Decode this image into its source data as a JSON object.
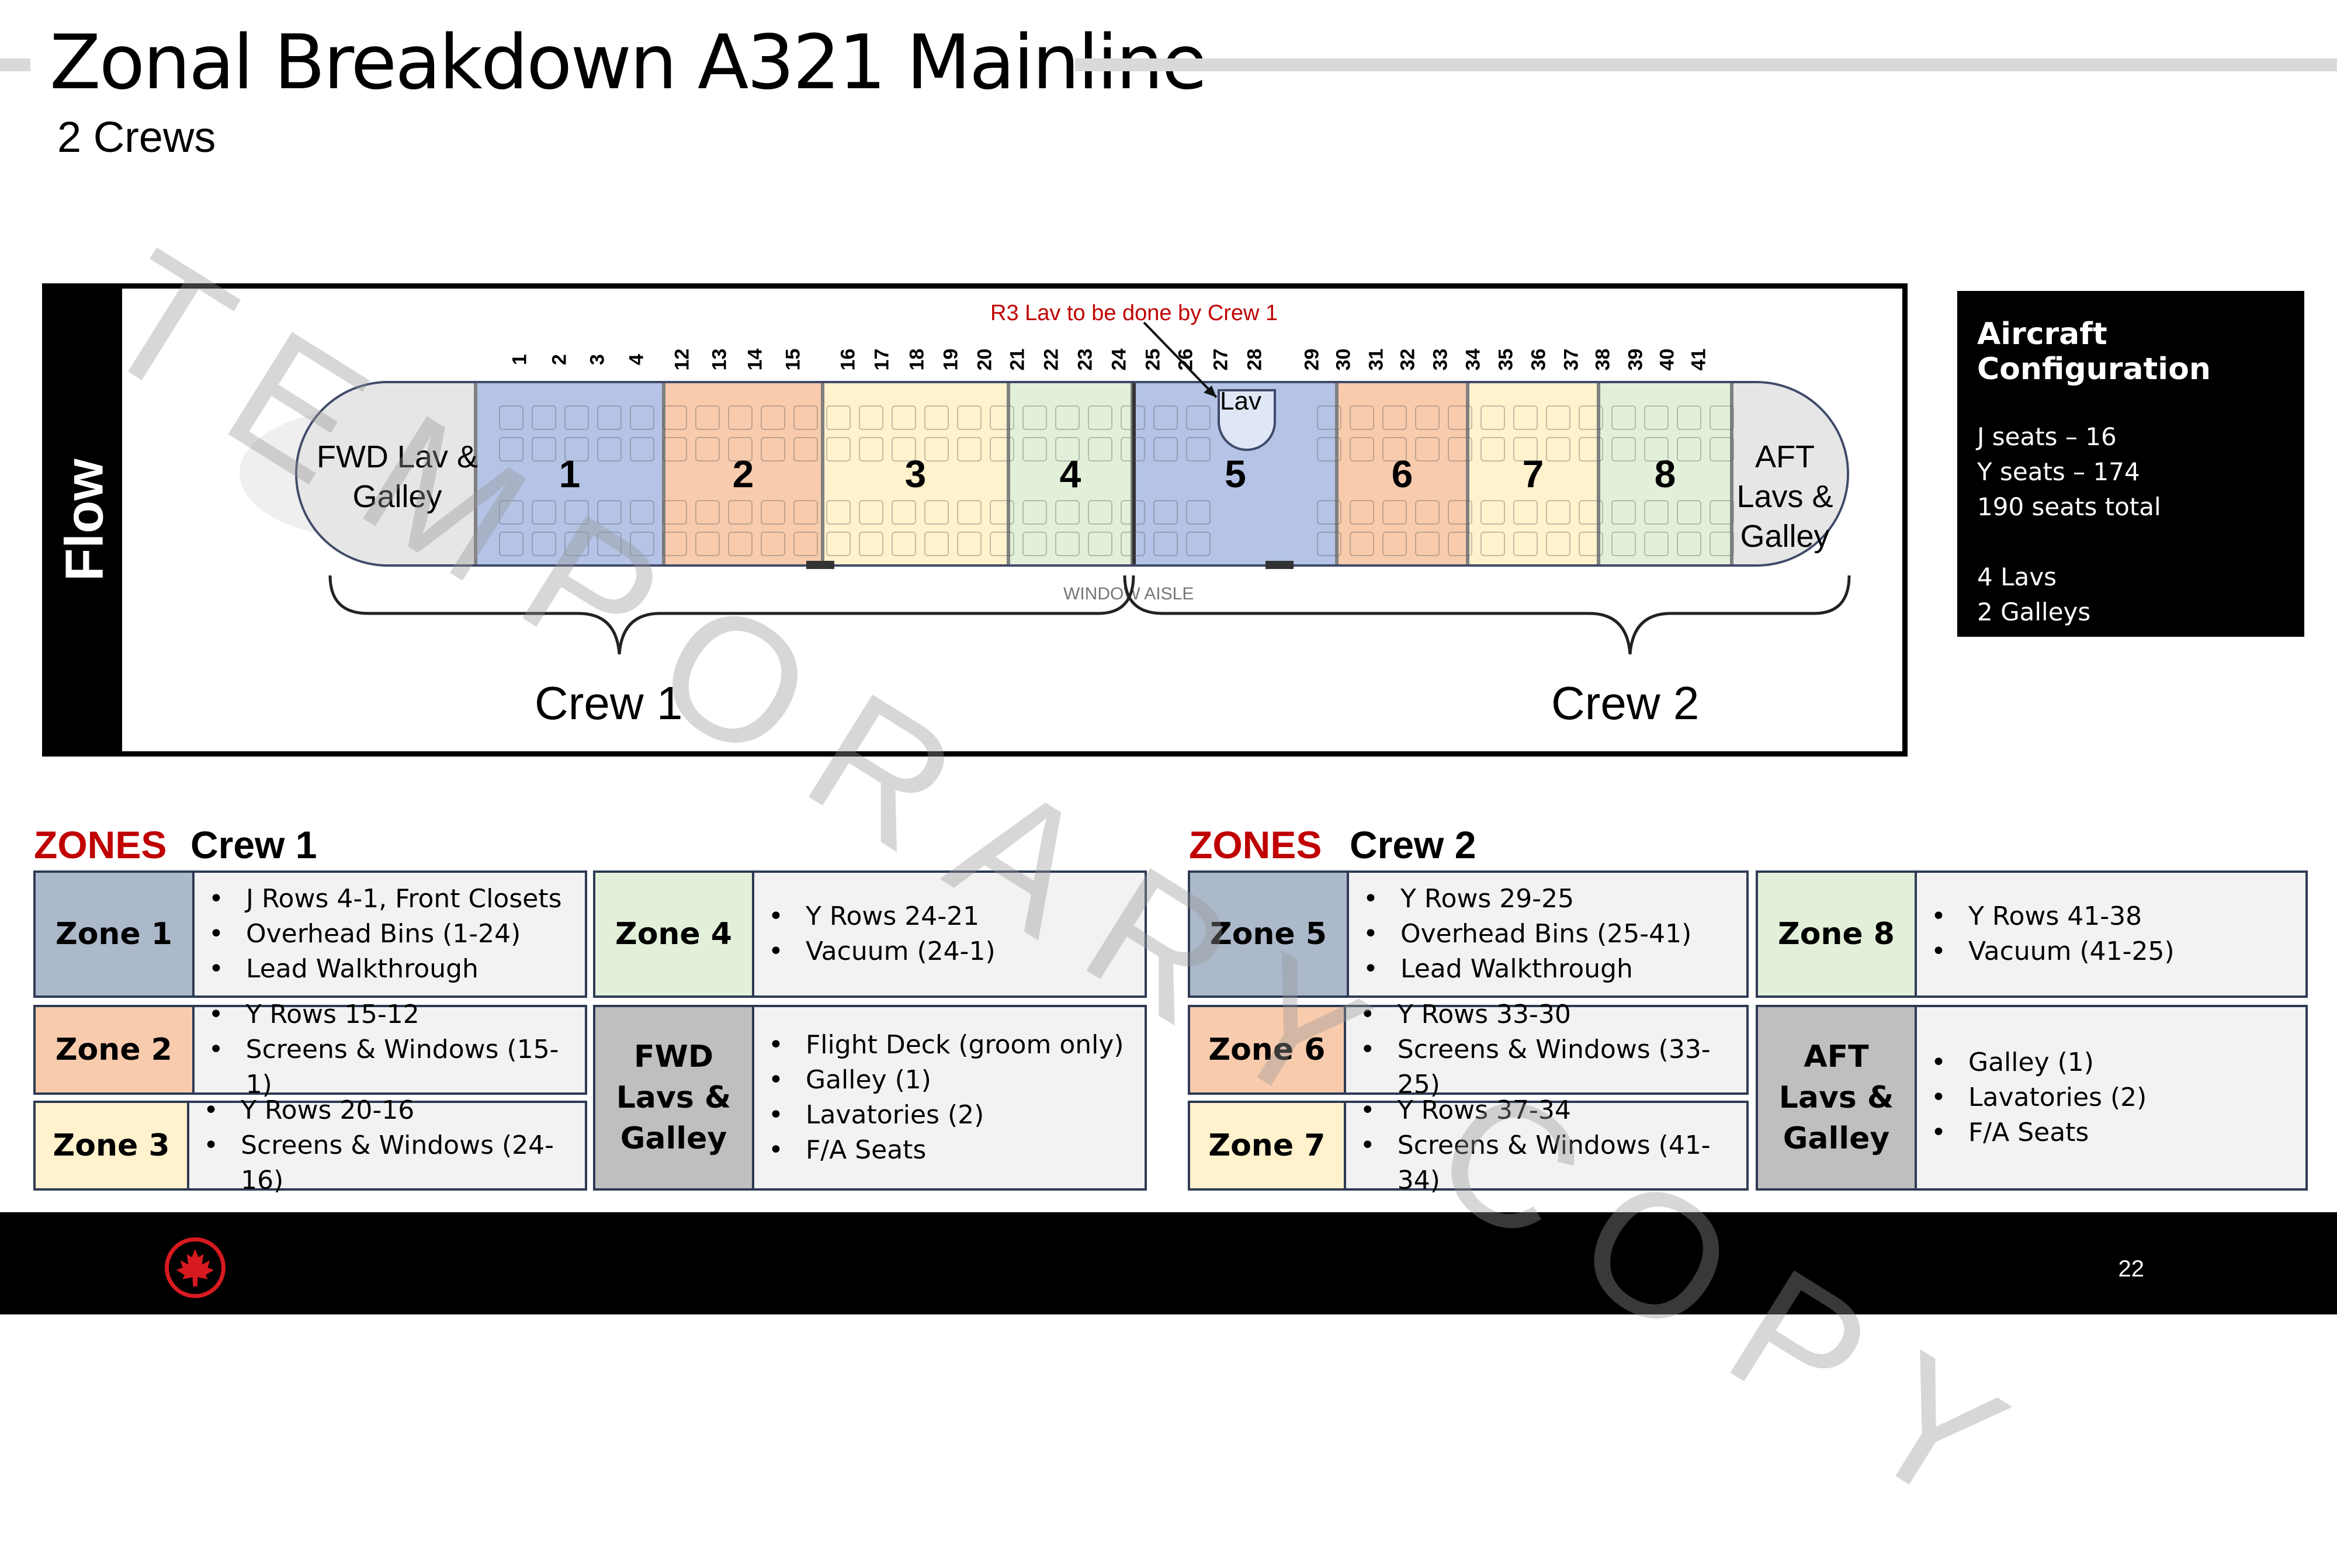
{
  "header": {
    "title": "Zonal Breakdown A321 Mainline",
    "subtitle": "2 Crews"
  },
  "watermark": "TEMPORARY COPY",
  "diagram": {
    "flow_label": "Flow",
    "r3_note": "R3 Lav to be done by Crew 1",
    "lav_label": "Lav",
    "fwd_label": "FWD Lav & Galley",
    "aft_label": "AFT Lavs & Galley",
    "aisle_label": "WINDOW AISLE",
    "crew1_label": "Crew 1",
    "crew2_label": "Crew 2",
    "zones": [
      "1",
      "2",
      "3",
      "4",
      "5",
      "6",
      "7",
      "8"
    ],
    "row_numbers": [
      "1",
      "2",
      "3",
      "4",
      "12",
      "13",
      "14",
      "15",
      "16",
      "17",
      "18",
      "19",
      "20",
      "21",
      "22",
      "23",
      "24",
      "25",
      "26",
      "27",
      "28",
      "29",
      "30",
      "31",
      "32",
      "33",
      "34",
      "35",
      "36",
      "37",
      "38",
      "39",
      "40",
      "41"
    ],
    "zone_colors": {
      "z1": "#b4c3e6",
      "z2": "#f8cbad",
      "z3": "#fff2cc",
      "z4": "#e2f0d9",
      "z5": "#b4c3e6",
      "z6": "#f8cbad",
      "z7": "#fff2cc",
      "z8": "#e2f0d9",
      "end": "#e6e6e6"
    }
  },
  "config": {
    "title": "Aircraft Configuration",
    "lines": [
      "J seats – 16",
      "Y seats – 174",
      "190 seats total",
      "",
      "4 Lavs",
      "2 Galleys"
    ]
  },
  "crew1": {
    "zones_word": "ZONES",
    "crew": "Crew 1",
    "zone1": {
      "label": "Zone 1",
      "items": [
        "J Rows 4-1, Front Closets",
        "Overhead Bins (1-24)",
        "Lead Walkthrough"
      ]
    },
    "zone2": {
      "label": "Zone 2",
      "items": [
        "Y Rows 15-12",
        "Screens & Windows (15-1)"
      ]
    },
    "zone3": {
      "label": "Zone 3",
      "items": [
        "Y Rows 20-16",
        "Screens & Windows (24-16)"
      ]
    },
    "zone4": {
      "label": "Zone 4",
      "items": [
        "Y Rows 24-21",
        "Vacuum (24-1)"
      ]
    },
    "fwd": {
      "label_lines": [
        "FWD",
        "Lavs &",
        "Galley"
      ],
      "items": [
        "Flight Deck (groom only)",
        "Galley (1)",
        "Lavatories (2)",
        "F/A Seats"
      ]
    }
  },
  "crew2": {
    "zones_word": "ZONES",
    "crew": "Crew 2",
    "zone5": {
      "label": "Zone 5",
      "items": [
        "Y Rows 29-25",
        "Overhead Bins (25-41)",
        "Lead Walkthrough"
      ]
    },
    "zone6": {
      "label": "Zone 6",
      "items": [
        "Y Rows 33-30",
        "Screens & Windows (33-25)"
      ]
    },
    "zone7": {
      "label": "Zone 7",
      "items": [
        "Y Rows 37-34",
        "Screens & Windows (41-34)"
      ]
    },
    "zone8": {
      "label": "Zone 8",
      "items": [
        "Y Rows 41-38",
        "Vacuum (41-25)"
      ]
    },
    "aft": {
      "label_lines": [
        "AFT",
        "Lavs &",
        "Galley"
      ],
      "items": [
        "Galley (1)",
        "Lavatories (2)",
        "F/A Seats"
      ]
    }
  },
  "footer": {
    "page_number": "22"
  },
  "table_colors": {
    "zone1": "#acb9ca",
    "zone2": "#f8cbad",
    "zone3": "#fff2cc",
    "zone4": "#e2f0d9",
    "galley": "#bfbfbf"
  }
}
